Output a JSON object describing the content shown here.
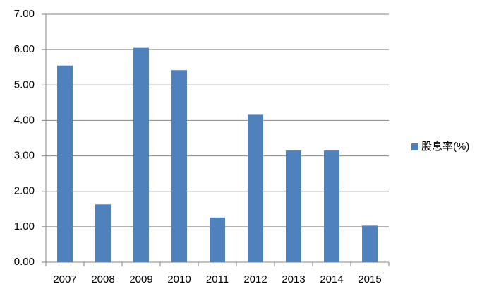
{
  "chart_data": {
    "type": "bar",
    "categories": [
      "2007",
      "2008",
      "2009",
      "2010",
      "2011",
      "2012",
      "2013",
      "2014",
      "2015"
    ],
    "series": [
      {
        "name": "股息率(%)",
        "color": "#4f81bd",
        "values": [
          5.55,
          1.63,
          6.05,
          5.42,
          1.26,
          4.16,
          3.15,
          3.15,
          1.03
        ]
      }
    ],
    "ylim": [
      0,
      7
    ],
    "yticks": [
      {
        "value": 0,
        "label": "0.00"
      },
      {
        "value": 1,
        "label": "1.00"
      },
      {
        "value": 2,
        "label": "2.00"
      },
      {
        "value": 3,
        "label": "3.00"
      },
      {
        "value": 4,
        "label": "4.00"
      },
      {
        "value": 5,
        "label": "5.00"
      },
      {
        "value": 6,
        "label": "6.00"
      },
      {
        "value": 7,
        "label": "7.00"
      }
    ],
    "grid": true,
    "legend": "right"
  }
}
